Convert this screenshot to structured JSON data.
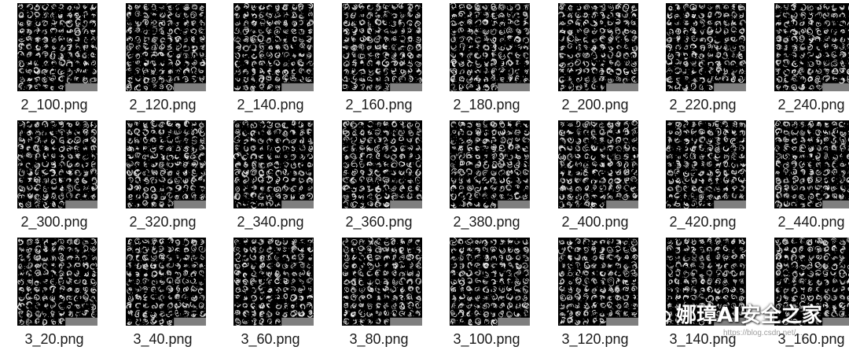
{
  "files": [
    "2_100.png",
    "2_120.png",
    "2_140.png",
    "2_160.png",
    "2_180.png",
    "2_200.png",
    "2_220.png",
    "2_240.png",
    "2_300.png",
    "2_320.png",
    "2_340.png",
    "2_360.png",
    "2_380.png",
    "2_400.png",
    "2_420.png",
    "2_440.png",
    "3_20.png",
    "3_40.png",
    "3_60.png",
    "3_80.png",
    "3_100.png",
    "3_120.png",
    "3_140.png",
    "3_160.png"
  ],
  "watermark": {
    "text": "娜璋AI安全之家",
    "url": "https://blog.csdn.net/..."
  },
  "colors": {
    "thumb_bg": "#000000",
    "thumb_filler": "#7f7f7f",
    "caption": "#1a1a1a"
  },
  "icons": {
    "watermark": "wechat-icon"
  }
}
